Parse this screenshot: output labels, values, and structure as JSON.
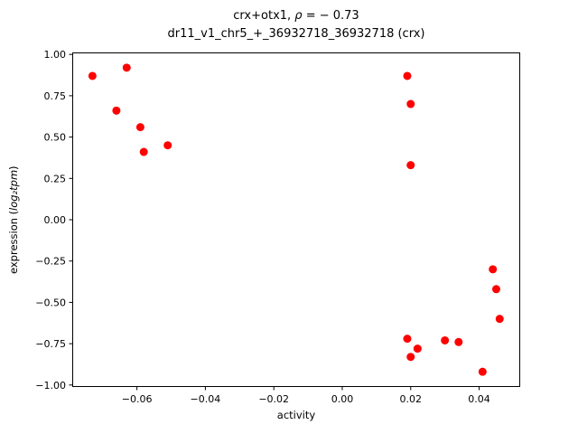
{
  "chart_data": {
    "type": "scatter",
    "title": {
      "line1_prefix": "crx+otx1, ",
      "line1_rho": "ρ",
      "line1_suffix": " = − 0.73",
      "line2": "dr11_v1_chr5_+_36932718_36932718 (crx)"
    },
    "xlabel": "activity",
    "ylabel_prefix": "expression (",
    "ylabel_math": "log₂tpm",
    "ylabel_suffix": ")",
    "marker_color": "#ff0000",
    "axis_color": "#000000",
    "xlim": [
      -0.0789,
      0.052
    ],
    "ylim": [
      -1.012,
      1.012
    ],
    "xticks": {
      "values": [
        -0.06,
        -0.04,
        -0.02,
        0.0,
        0.02,
        0.04
      ],
      "labels": [
        "−0.06",
        "−0.04",
        "−0.02",
        "0.00",
        "0.02",
        "0.04"
      ]
    },
    "yticks": {
      "values": [
        -1.0,
        -0.75,
        -0.5,
        -0.25,
        0.0,
        0.25,
        0.5,
        0.75,
        1.0
      ],
      "labels": [
        "−1.00",
        "−0.75",
        "−0.50",
        "−0.25",
        "0.00",
        "0.25",
        "0.50",
        "0.75",
        "1.00"
      ]
    },
    "points": [
      [
        -0.073,
        0.87
      ],
      [
        -0.066,
        0.66
      ],
      [
        -0.063,
        0.92
      ],
      [
        -0.059,
        0.56
      ],
      [
        -0.058,
        0.41
      ],
      [
        -0.051,
        0.45
      ],
      [
        0.019,
        0.87
      ],
      [
        0.02,
        0.7
      ],
      [
        0.02,
        0.33
      ],
      [
        0.019,
        -0.72
      ],
      [
        0.02,
        -0.83
      ],
      [
        0.022,
        -0.78
      ],
      [
        0.03,
        -0.73
      ],
      [
        0.034,
        -0.74
      ],
      [
        0.041,
        -0.92
      ],
      [
        0.044,
        -0.3
      ],
      [
        0.045,
        -0.42
      ],
      [
        0.046,
        -0.6
      ]
    ]
  }
}
